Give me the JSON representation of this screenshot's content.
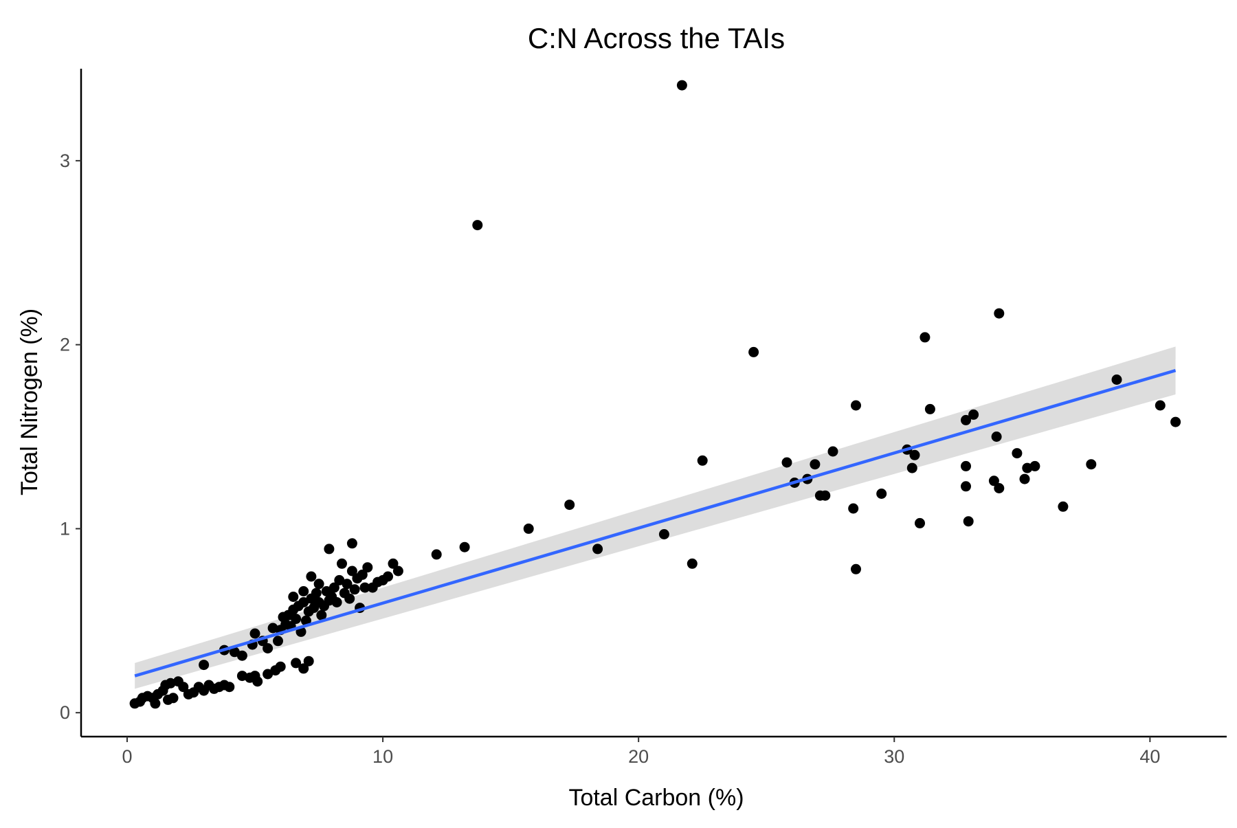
{
  "chart_data": {
    "type": "scatter",
    "title": "C:N Across the TAIs",
    "xlabel": "Total Carbon (%)",
    "ylabel": "Total Nitrogen (%)",
    "xlim": [
      -1.8,
      43
    ],
    "ylim": [
      -0.13,
      3.5
    ],
    "xticks": [
      0,
      10,
      20,
      30,
      40
    ],
    "yticks": [
      0,
      1,
      2,
      3
    ],
    "xtick_labels": [
      "0",
      "10",
      "20",
      "30",
      "40"
    ],
    "ytick_labels": [
      "0",
      "1",
      "2",
      "3"
    ],
    "grid": false,
    "legend": "none",
    "colors": {
      "points": "#000000",
      "fit_line": "#3366FF",
      "confidence_band": "#d9d9d9"
    },
    "series": [
      {
        "type": "scatter",
        "points": [
          [
            0.3,
            0.05
          ],
          [
            0.5,
            0.06
          ],
          [
            0.6,
            0.08
          ],
          [
            0.8,
            0.09
          ],
          [
            1.0,
            0.08
          ],
          [
            1.1,
            0.05
          ],
          [
            1.2,
            0.1
          ],
          [
            1.4,
            0.12
          ],
          [
            1.5,
            0.15
          ],
          [
            1.6,
            0.07
          ],
          [
            1.7,
            0.16
          ],
          [
            1.8,
            0.08
          ],
          [
            2.0,
            0.17
          ],
          [
            2.2,
            0.14
          ],
          [
            2.4,
            0.1
          ],
          [
            2.6,
            0.11
          ],
          [
            2.8,
            0.14
          ],
          [
            3.0,
            0.12
          ],
          [
            3.2,
            0.15
          ],
          [
            3.4,
            0.13
          ],
          [
            3.6,
            0.14
          ],
          [
            3.8,
            0.15
          ],
          [
            4.0,
            0.14
          ],
          [
            4.5,
            0.2
          ],
          [
            4.8,
            0.19
          ],
          [
            5.0,
            0.2
          ],
          [
            5.1,
            0.17
          ],
          [
            5.5,
            0.21
          ],
          [
            5.8,
            0.23
          ],
          [
            6.0,
            0.25
          ],
          [
            6.6,
            0.27
          ],
          [
            6.9,
            0.24
          ],
          [
            7.1,
            0.28
          ],
          [
            3.0,
            0.26
          ],
          [
            3.8,
            0.34
          ],
          [
            4.2,
            0.33
          ],
          [
            4.5,
            0.31
          ],
          [
            4.9,
            0.37
          ],
          [
            5.0,
            0.43
          ],
          [
            5.3,
            0.39
          ],
          [
            5.5,
            0.35
          ],
          [
            5.7,
            0.46
          ],
          [
            5.9,
            0.39
          ],
          [
            6.0,
            0.45
          ],
          [
            6.1,
            0.52
          ],
          [
            6.2,
            0.48
          ],
          [
            6.3,
            0.53
          ],
          [
            6.4,
            0.47
          ],
          [
            6.5,
            0.56
          ],
          [
            6.5,
            0.63
          ],
          [
            6.6,
            0.51
          ],
          [
            6.7,
            0.58
          ],
          [
            6.8,
            0.44
          ],
          [
            6.9,
            0.6
          ],
          [
            6.9,
            0.66
          ],
          [
            7.0,
            0.5
          ],
          [
            7.1,
            0.55
          ],
          [
            7.2,
            0.62
          ],
          [
            7.2,
            0.74
          ],
          [
            7.3,
            0.57
          ],
          [
            7.4,
            0.65
          ],
          [
            7.5,
            0.6
          ],
          [
            7.5,
            0.7
          ],
          [
            7.6,
            0.53
          ],
          [
            7.7,
            0.58
          ],
          [
            7.8,
            0.66
          ],
          [
            7.9,
            0.61
          ],
          [
            7.9,
            0.89
          ],
          [
            8.0,
            0.63
          ],
          [
            8.1,
            0.68
          ],
          [
            8.2,
            0.6
          ],
          [
            8.3,
            0.72
          ],
          [
            8.4,
            0.81
          ],
          [
            8.5,
            0.65
          ],
          [
            8.6,
            0.7
          ],
          [
            8.7,
            0.62
          ],
          [
            8.8,
            0.77
          ],
          [
            8.8,
            0.92
          ],
          [
            8.9,
            0.67
          ],
          [
            9.0,
            0.73
          ],
          [
            9.1,
            0.57
          ],
          [
            9.2,
            0.75
          ],
          [
            9.3,
            0.68
          ],
          [
            9.4,
            0.79
          ],
          [
            9.6,
            0.68
          ],
          [
            9.8,
            0.71
          ],
          [
            10.0,
            0.72
          ],
          [
            10.2,
            0.74
          ],
          [
            10.4,
            0.81
          ],
          [
            10.6,
            0.77
          ],
          [
            12.1,
            0.86
          ],
          [
            13.2,
            0.9
          ],
          [
            13.7,
            2.65
          ],
          [
            15.7,
            1.0
          ],
          [
            17.3,
            1.13
          ],
          [
            18.4,
            0.89
          ],
          [
            21.0,
            0.97
          ],
          [
            21.7,
            3.41
          ],
          [
            22.1,
            0.81
          ],
          [
            22.5,
            1.37
          ],
          [
            24.5,
            1.96
          ],
          [
            25.8,
            1.36
          ],
          [
            26.1,
            1.25
          ],
          [
            26.6,
            1.27
          ],
          [
            26.9,
            1.35
          ],
          [
            27.1,
            1.18
          ],
          [
            27.3,
            1.18
          ],
          [
            27.6,
            1.42
          ],
          [
            28.4,
            1.11
          ],
          [
            28.5,
            0.78
          ],
          [
            28.5,
            1.67
          ],
          [
            29.5,
            1.19
          ],
          [
            30.5,
            1.43
          ],
          [
            30.7,
            1.33
          ],
          [
            30.8,
            1.4
          ],
          [
            31.0,
            1.03
          ],
          [
            31.2,
            2.04
          ],
          [
            31.4,
            1.65
          ],
          [
            32.8,
            1.23
          ],
          [
            32.8,
            1.34
          ],
          [
            32.8,
            1.59
          ],
          [
            32.9,
            1.04
          ],
          [
            33.1,
            1.62
          ],
          [
            33.9,
            1.26
          ],
          [
            34.0,
            1.5
          ],
          [
            34.1,
            2.17
          ],
          [
            34.1,
            1.22
          ],
          [
            34.8,
            1.41
          ],
          [
            35.1,
            1.27
          ],
          [
            35.2,
            1.33
          ],
          [
            35.5,
            1.34
          ],
          [
            36.6,
            1.12
          ],
          [
            37.7,
            1.35
          ],
          [
            38.7,
            1.81
          ],
          [
            40.4,
            1.67
          ],
          [
            41.0,
            1.58
          ]
        ]
      },
      {
        "type": "line",
        "method": "linear fit",
        "x": [
          0.3,
          41.0
        ],
        "y": [
          0.2,
          1.86
        ],
        "ci_lower": [
          0.13,
          1.73
        ],
        "ci_upper": [
          0.27,
          1.99
        ]
      }
    ]
  }
}
